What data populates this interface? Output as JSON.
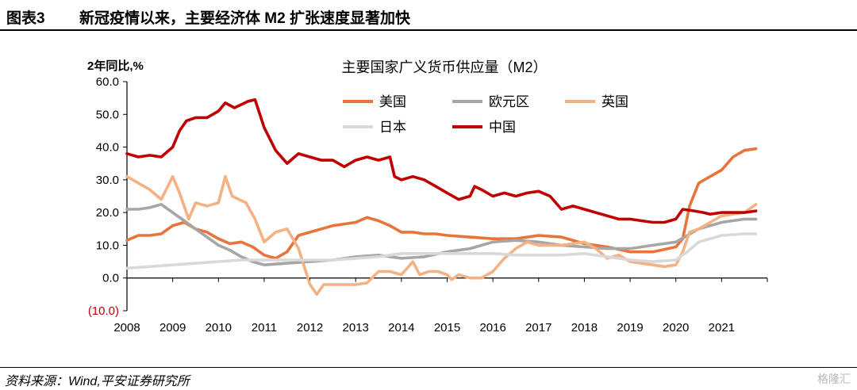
{
  "header": {
    "figure_no": "图表3",
    "title": "新冠疫情以来，主要经济体 M2 扩张速度显著加快"
  },
  "footer": {
    "source": "资料来源：Wind,平安证券研究所",
    "watermark": "格隆汇"
  },
  "chart_data": {
    "type": "line",
    "title": "主要国家广义货币供应量（M2）",
    "ylabel": "2年同比,%",
    "ylim": [
      -10,
      60
    ],
    "xlim": [
      2008,
      2022
    ],
    "yticks": [
      -10,
      0,
      10,
      20,
      30,
      40,
      50,
      60
    ],
    "ytick_labels": [
      "(10.0)",
      "0.0",
      "10.0",
      "20.0",
      "30.0",
      "40.0",
      "50.0",
      "60.0"
    ],
    "xticks": [
      "2008",
      "2009",
      "2010",
      "2011",
      "2012",
      "2013",
      "2014",
      "2015",
      "2016",
      "2017",
      "2018",
      "2019",
      "2020",
      "2021"
    ],
    "legend_position": "top-center",
    "grid": false,
    "series": [
      {
        "name": "美国",
        "color": "#e8743b",
        "points": [
          [
            2008.0,
            11.5
          ],
          [
            2008.25,
            13
          ],
          [
            2008.5,
            13
          ],
          [
            2008.75,
            13.5
          ],
          [
            2009.0,
            16
          ],
          [
            2009.25,
            17
          ],
          [
            2009.5,
            15
          ],
          [
            2009.75,
            14
          ],
          [
            2010.0,
            12
          ],
          [
            2010.25,
            10.5
          ],
          [
            2010.5,
            11
          ],
          [
            2010.75,
            9.5
          ],
          [
            2011.0,
            7
          ],
          [
            2011.25,
            6
          ],
          [
            2011.5,
            8
          ],
          [
            2011.75,
            13
          ],
          [
            2012.0,
            14
          ],
          [
            2012.25,
            15
          ],
          [
            2012.5,
            16
          ],
          [
            2012.75,
            16.5
          ],
          [
            2013.0,
            17
          ],
          [
            2013.25,
            18.5
          ],
          [
            2013.5,
            17.5
          ],
          [
            2013.75,
            16
          ],
          [
            2014.0,
            14
          ],
          [
            2014.25,
            14
          ],
          [
            2014.5,
            13.5
          ],
          [
            2014.75,
            13.5
          ],
          [
            2015.0,
            13
          ],
          [
            2015.5,
            12.5
          ],
          [
            2016.0,
            12
          ],
          [
            2016.5,
            12
          ],
          [
            2017.0,
            13
          ],
          [
            2017.5,
            12.5
          ],
          [
            2018.0,
            10.5
          ],
          [
            2018.5,
            9.5
          ],
          [
            2019.0,
            8
          ],
          [
            2019.5,
            8
          ],
          [
            2020.0,
            9.5
          ],
          [
            2020.15,
            12
          ],
          [
            2020.3,
            22
          ],
          [
            2020.5,
            29
          ],
          [
            2020.75,
            31
          ],
          [
            2021.0,
            33
          ],
          [
            2021.25,
            37
          ],
          [
            2021.5,
            39
          ],
          [
            2021.75,
            39.5
          ]
        ]
      },
      {
        "name": "欧元区",
        "color": "#a6a6a6",
        "points": [
          [
            2008.0,
            21
          ],
          [
            2008.25,
            21
          ],
          [
            2008.5,
            21.5
          ],
          [
            2008.75,
            22.5
          ],
          [
            2009.0,
            20
          ],
          [
            2009.25,
            17.5
          ],
          [
            2009.5,
            15
          ],
          [
            2009.75,
            12.5
          ],
          [
            2010.0,
            10
          ],
          [
            2010.25,
            8.5
          ],
          [
            2010.5,
            6.5
          ],
          [
            2010.75,
            5
          ],
          [
            2011.0,
            4
          ],
          [
            2011.5,
            4.5
          ],
          [
            2012.0,
            5
          ],
          [
            2012.5,
            5.5
          ],
          [
            2013.0,
            6.5
          ],
          [
            2013.5,
            7
          ],
          [
            2014.0,
            6
          ],
          [
            2014.5,
            6.5
          ],
          [
            2015.0,
            8
          ],
          [
            2015.5,
            9
          ],
          [
            2016.0,
            11
          ],
          [
            2016.5,
            11.5
          ],
          [
            2017.0,
            11
          ],
          [
            2017.5,
            10
          ],
          [
            2018.0,
            9.5
          ],
          [
            2018.5,
            9
          ],
          [
            2019.0,
            9
          ],
          [
            2019.5,
            10
          ],
          [
            2020.0,
            11
          ],
          [
            2020.25,
            13
          ],
          [
            2020.5,
            15
          ],
          [
            2020.75,
            16
          ],
          [
            2021.0,
            17
          ],
          [
            2021.5,
            18
          ],
          [
            2021.75,
            18
          ]
        ]
      },
      {
        "name": "英国",
        "color": "#f4b183",
        "points": [
          [
            2008.0,
            31
          ],
          [
            2008.25,
            29
          ],
          [
            2008.5,
            27
          ],
          [
            2008.75,
            24
          ],
          [
            2009.0,
            31
          ],
          [
            2009.15,
            26
          ],
          [
            2009.35,
            18
          ],
          [
            2009.5,
            23
          ],
          [
            2009.75,
            22
          ],
          [
            2010.0,
            23
          ],
          [
            2010.15,
            31
          ],
          [
            2010.3,
            25
          ],
          [
            2010.6,
            23
          ],
          [
            2010.8,
            18
          ],
          [
            2011.0,
            11
          ],
          [
            2011.25,
            14
          ],
          [
            2011.5,
            15
          ],
          [
            2011.75,
            9
          ],
          [
            2012.0,
            -2
          ],
          [
            2012.15,
            -5
          ],
          [
            2012.3,
            -2
          ],
          [
            2012.5,
            -2
          ],
          [
            2012.75,
            -2
          ],
          [
            2013.0,
            -2
          ],
          [
            2013.25,
            -1.5
          ],
          [
            2013.5,
            2
          ],
          [
            2013.75,
            2
          ],
          [
            2014.0,
            1
          ],
          [
            2014.25,
            5
          ],
          [
            2014.4,
            1
          ],
          [
            2014.6,
            2
          ],
          [
            2014.8,
            2
          ],
          [
            2015.0,
            1
          ],
          [
            2015.1,
            -0.5
          ],
          [
            2015.25,
            1
          ],
          [
            2015.5,
            0
          ],
          [
            2015.75,
            0
          ],
          [
            2016.0,
            2
          ],
          [
            2016.25,
            6
          ],
          [
            2016.5,
            9
          ],
          [
            2016.75,
            11
          ],
          [
            2017.0,
            10
          ],
          [
            2017.5,
            10
          ],
          [
            2018.0,
            11
          ],
          [
            2018.25,
            9
          ],
          [
            2018.5,
            6
          ],
          [
            2018.75,
            7
          ],
          [
            2019.0,
            5
          ],
          [
            2019.5,
            4
          ],
          [
            2019.75,
            3.5
          ],
          [
            2020.0,
            4
          ],
          [
            2020.15,
            8
          ],
          [
            2020.3,
            14
          ],
          [
            2020.5,
            15
          ],
          [
            2020.75,
            17
          ],
          [
            2021.0,
            19
          ],
          [
            2021.5,
            20
          ],
          [
            2021.75,
            22.5
          ]
        ]
      },
      {
        "name": "日本",
        "color": "#d9d9d9",
        "points": [
          [
            2008.0,
            3
          ],
          [
            2008.5,
            3.5
          ],
          [
            2009.0,
            4
          ],
          [
            2009.5,
            4.5
          ],
          [
            2010.0,
            5
          ],
          [
            2010.5,
            5.5
          ],
          [
            2011.0,
            5.5
          ],
          [
            2011.5,
            5.5
          ],
          [
            2012.0,
            5.5
          ],
          [
            2012.5,
            5.5
          ],
          [
            2013.0,
            6
          ],
          [
            2013.5,
            6.5
          ],
          [
            2014.0,
            7.5
          ],
          [
            2014.5,
            7.5
          ],
          [
            2015.0,
            7.5
          ],
          [
            2015.5,
            7.5
          ],
          [
            2016.0,
            7.5
          ],
          [
            2016.5,
            7
          ],
          [
            2017.0,
            7
          ],
          [
            2017.5,
            7
          ],
          [
            2018.0,
            7.5
          ],
          [
            2018.5,
            6.5
          ],
          [
            2019.0,
            5.5
          ],
          [
            2019.5,
            5
          ],
          [
            2020.0,
            5.5
          ],
          [
            2020.25,
            8
          ],
          [
            2020.5,
            11
          ],
          [
            2020.75,
            12
          ],
          [
            2021.0,
            13
          ],
          [
            2021.5,
            13.5
          ],
          [
            2021.75,
            13.5
          ]
        ]
      },
      {
        "name": "中国",
        "color": "#c00000",
        "points": [
          [
            2008.0,
            38
          ],
          [
            2008.25,
            37
          ],
          [
            2008.5,
            37.5
          ],
          [
            2008.75,
            37
          ],
          [
            2009.0,
            40
          ],
          [
            2009.15,
            45
          ],
          [
            2009.3,
            48
          ],
          [
            2009.5,
            49
          ],
          [
            2009.75,
            49
          ],
          [
            2010.0,
            51
          ],
          [
            2010.15,
            53.5
          ],
          [
            2010.35,
            52
          ],
          [
            2010.5,
            53
          ],
          [
            2010.65,
            54
          ],
          [
            2010.8,
            54.5
          ],
          [
            2011.0,
            46
          ],
          [
            2011.25,
            39
          ],
          [
            2011.5,
            35
          ],
          [
            2011.75,
            38
          ],
          [
            2012.0,
            37
          ],
          [
            2012.25,
            36
          ],
          [
            2012.5,
            36
          ],
          [
            2012.75,
            34
          ],
          [
            2013.0,
            36
          ],
          [
            2013.25,
            37
          ],
          [
            2013.5,
            36
          ],
          [
            2013.75,
            37
          ],
          [
            2013.85,
            31
          ],
          [
            2014.0,
            30
          ],
          [
            2014.25,
            31
          ],
          [
            2014.5,
            30
          ],
          [
            2014.75,
            28
          ],
          [
            2015.0,
            26
          ],
          [
            2015.25,
            24
          ],
          [
            2015.5,
            25
          ],
          [
            2015.6,
            28
          ],
          [
            2015.75,
            27
          ],
          [
            2016.0,
            25
          ],
          [
            2016.25,
            26
          ],
          [
            2016.5,
            25
          ],
          [
            2016.75,
            26
          ],
          [
            2017.0,
            26.5
          ],
          [
            2017.25,
            25
          ],
          [
            2017.5,
            21
          ],
          [
            2017.75,
            22
          ],
          [
            2018.0,
            21
          ],
          [
            2018.25,
            20
          ],
          [
            2018.5,
            19
          ],
          [
            2018.75,
            18
          ],
          [
            2019.0,
            18
          ],
          [
            2019.25,
            17.5
          ],
          [
            2019.5,
            17
          ],
          [
            2019.75,
            17
          ],
          [
            2020.0,
            18
          ],
          [
            2020.15,
            21
          ],
          [
            2020.4,
            20.5
          ],
          [
            2020.6,
            20
          ],
          [
            2020.75,
            19.5
          ],
          [
            2021.0,
            20
          ],
          [
            2021.25,
            20
          ],
          [
            2021.5,
            20
          ],
          [
            2021.75,
            20.5
          ]
        ]
      }
    ]
  }
}
